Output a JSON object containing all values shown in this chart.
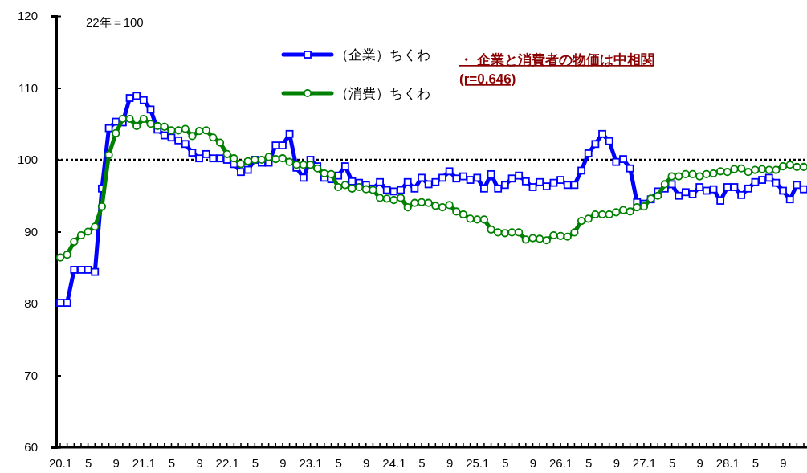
{
  "chart_data": {
    "type": "line",
    "categories": [
      "20.1",
      null,
      null,
      null,
      "5",
      null,
      null,
      null,
      "9",
      null,
      null,
      null,
      "21.1",
      null,
      null,
      null,
      "5",
      null,
      null,
      null,
      "9",
      null,
      null,
      null,
      "22.1",
      null,
      null,
      null,
      "5",
      null,
      null,
      null,
      "9",
      null,
      null,
      null,
      "23.1",
      null,
      null,
      null,
      "5",
      null,
      null,
      null,
      "9",
      null,
      null,
      null,
      "24.1",
      null,
      null,
      null,
      "5",
      null,
      null,
      null,
      "9",
      null,
      null,
      null,
      "25.1",
      null,
      null,
      null,
      "5",
      null,
      null,
      null,
      "9",
      null,
      null,
      null,
      "26.1",
      null,
      null,
      null,
      "5",
      null,
      null,
      null,
      "9",
      null,
      null,
      null,
      "27.1",
      null,
      null,
      null,
      "5",
      null,
      null,
      null,
      "9",
      null,
      null,
      null,
      "28.1",
      null,
      null,
      null,
      "5",
      null,
      null,
      null,
      "9",
      null,
      null,
      null
    ],
    "series": [
      {
        "name": "（企業）ちくわ",
        "color": "#0000ff",
        "marker": "square",
        "values": [
          80.1,
          80.1,
          84.7,
          84.7,
          84.7,
          84.4,
          96.0,
          104.4,
          105.3,
          105.2,
          108.6,
          108.9,
          108.3,
          107.0,
          104.2,
          103.4,
          103.1,
          102.7,
          102.2,
          101.0,
          100.2,
          100.8,
          100.2,
          100.2,
          100.0,
          99.4,
          98.3,
          98.6,
          100.0,
          99.6,
          99.6,
          102.0,
          102.0,
          103.6,
          98.9,
          97.5,
          100.0,
          99.1,
          97.5,
          97.3,
          97.8,
          99.1,
          97.0,
          96.8,
          96.5,
          96.0,
          96.9,
          95.8,
          95.6,
          95.8,
          96.9,
          96.0,
          97.5,
          96.6,
          96.9,
          97.5,
          98.4,
          97.4,
          97.7,
          97.2,
          97.5,
          96.0,
          98.0,
          96.0,
          96.5,
          97.4,
          97.8,
          97.0,
          96.2,
          96.9,
          96.3,
          96.8,
          97.2,
          96.5,
          96.5,
          98.5,
          100.9,
          102.2,
          103.6,
          102.6,
          99.7,
          100.1,
          98.8,
          94.1,
          93.9,
          94.5,
          95.6,
          96.0,
          96.6,
          95.0,
          95.5,
          95.2,
          96.2,
          95.7,
          95.9,
          94.3,
          96.2,
          96.2,
          95.1,
          96.0,
          96.9,
          97.2,
          97.5,
          96.8,
          95.7,
          94.5,
          96.5,
          95.9
        ]
      },
      {
        "name": "（消費）ちくわ",
        "color": "#008000",
        "marker": "circle",
        "values": [
          86.4,
          86.8,
          88.6,
          89.5,
          90.0,
          90.7,
          93.5,
          100.7,
          103.7,
          105.7,
          105.7,
          104.7,
          105.7,
          105.0,
          104.7,
          104.6,
          104.1,
          104.1,
          104.3,
          103.3,
          104.0,
          104.1,
          103.1,
          102.4,
          100.8,
          100.2,
          99.4,
          99.8,
          100.0,
          100.0,
          100.4,
          100.1,
          100.2,
          99.7,
          99.3,
          99.3,
          99.3,
          98.8,
          98.1,
          98.0,
          96.2,
          96.5,
          96.0,
          96.2,
          95.9,
          95.8,
          94.7,
          94.6,
          94.4,
          94.7,
          93.4,
          94.0,
          94.1,
          94.0,
          93.6,
          93.4,
          93.7,
          92.8,
          92.4,
          91.8,
          91.7,
          91.7,
          90.3,
          89.9,
          89.8,
          89.9,
          89.9,
          88.9,
          89.1,
          89.0,
          88.8,
          89.5,
          89.4,
          89.3,
          89.9,
          91.5,
          91.8,
          92.4,
          92.4,
          92.4,
          92.7,
          93.0,
          92.8,
          93.4,
          93.5,
          94.6,
          95.0,
          96.6,
          97.7,
          97.7,
          98.0,
          98.0,
          97.7,
          98.0,
          98.1,
          98.4,
          98.3,
          98.7,
          98.8,
          98.3,
          98.6,
          98.7,
          98.6,
          98.6,
          99.1,
          99.3,
          99.0,
          99.0
        ]
      }
    ],
    "ylim": [
      60,
      120
    ],
    "yticks": [
      60,
      70,
      80,
      90,
      100,
      110,
      120
    ],
    "ref_lines": [
      {
        "axis": "y",
        "value": 100,
        "color": "#000000",
        "line_style": "dotted"
      }
    ],
    "annotations": [
      "22年＝100",
      "・ 企業と消費者の物価は中相関",
      "(r=0.646)"
    ],
    "legend": "top",
    "grid": false
  }
}
